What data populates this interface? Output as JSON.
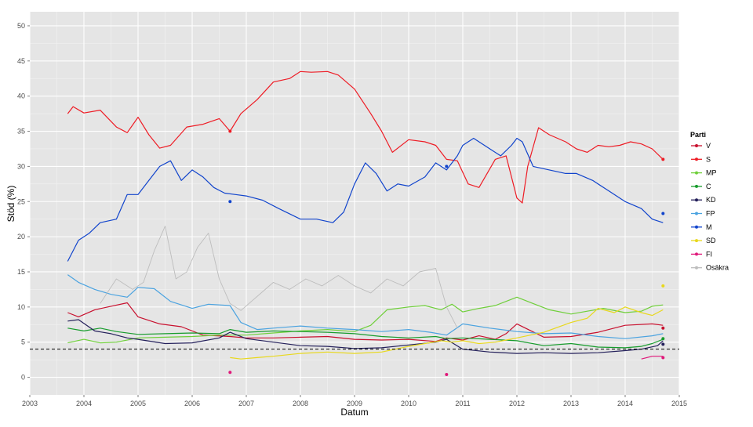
{
  "chart_data": {
    "type": "line",
    "xlabel": "Datum",
    "ylabel": "Stöd (%)",
    "xlim": [
      2003,
      2015
    ],
    "ylim": [
      -2.5,
      52
    ],
    "x_ticks": [
      2003,
      2004,
      2005,
      2006,
      2007,
      2008,
      2009,
      2010,
      2011,
      2012,
      2013,
      2014,
      2015
    ],
    "y_ticks": [
      0,
      5,
      10,
      15,
      20,
      25,
      30,
      35,
      40,
      45,
      50
    ],
    "grid": true,
    "reference_line": {
      "y": 4,
      "style": "dashed"
    },
    "legend": {
      "title": "Parti",
      "placement": "right"
    },
    "colors": {
      "panel": "#e5e5e5",
      "grid_major": "#ffffff",
      "reference": "#000000"
    },
    "series": [
      {
        "name": "V",
        "color": "#c8102e",
        "x": [
          2003.7,
          2003.9,
          2004.2,
          2004.5,
          2004.8,
          2005.0,
          2005.4,
          2005.8,
          2006.2,
          2006.7,
          2007.0,
          2007.5,
          2008.0,
          2008.5,
          2009.0,
          2009.5,
          2010.0,
          2010.5,
          2010.7,
          2011.0,
          2011.3,
          2011.6,
          2011.8,
          2012.0,
          2012.5,
          2013.0,
          2013.5,
          2014.0,
          2014.5,
          2014.7
        ],
        "y": [
          9.2,
          8.6,
          9.6,
          10.1,
          10.6,
          8.6,
          7.6,
          7.2,
          6.0,
          5.8,
          5.6,
          5.6,
          5.7,
          5.8,
          5.4,
          5.3,
          5.4,
          5.1,
          5.6,
          5.3,
          5.9,
          5.4,
          6.2,
          7.6,
          5.7,
          5.8,
          6.4,
          7.4,
          7.6,
          7.4
        ]
      },
      {
        "name": "S",
        "color": "#ee1c25",
        "x": [
          2003.7,
          2003.8,
          2004.0,
          2004.3,
          2004.6,
          2004.8,
          2005.0,
          2005.2,
          2005.4,
          2005.6,
          2005.9,
          2006.2,
          2006.5,
          2006.7,
          2006.9,
          2007.2,
          2007.5,
          2007.8,
          2008.0,
          2008.2,
          2008.5,
          2008.7,
          2009.0,
          2009.3,
          2009.5,
          2009.7,
          2010.0,
          2010.3,
          2010.5,
          2010.7,
          2010.9,
          2011.1,
          2011.3,
          2011.6,
          2011.8,
          2012.0,
          2012.1,
          2012.2,
          2012.4,
          2012.6,
          2012.9,
          2013.1,
          2013.3,
          2013.5,
          2013.7,
          2013.9,
          2014.1,
          2014.3,
          2014.5,
          2014.7
        ],
        "y": [
          37.5,
          38.5,
          37.6,
          38.0,
          35.6,
          34.8,
          37.0,
          34.5,
          32.6,
          33.0,
          35.6,
          36.0,
          36.8,
          35.0,
          37.5,
          39.5,
          42.0,
          42.5,
          43.5,
          43.4,
          43.5,
          43.0,
          41.0,
          37.5,
          35.0,
          32.0,
          33.8,
          33.5,
          33.0,
          31.0,
          30.8,
          27.5,
          27.0,
          31.0,
          31.5,
          25.5,
          24.8,
          30.0,
          35.5,
          34.5,
          33.5,
          32.5,
          32.0,
          33.0,
          32.8,
          33.0,
          33.5,
          33.2,
          32.5,
          31.0
        ]
      },
      {
        "name": "MP",
        "color": "#6fcf3a",
        "x": [
          2003.7,
          2004.0,
          2004.3,
          2004.6,
          2005.0,
          2005.5,
          2006.0,
          2006.5,
          2007.0,
          2007.5,
          2008.0,
          2008.5,
          2009.0,
          2009.3,
          2009.6,
          2010.0,
          2010.3,
          2010.6,
          2010.8,
          2011.0,
          2011.3,
          2011.6,
          2012.0,
          2012.3,
          2012.6,
          2013.0,
          2013.3,
          2013.6,
          2014.0,
          2014.3,
          2014.5,
          2014.7
        ],
        "y": [
          4.9,
          5.4,
          4.9,
          5.0,
          5.6,
          5.7,
          5.8,
          6.0,
          6.0,
          6.3,
          6.6,
          6.8,
          6.5,
          7.4,
          9.6,
          10.0,
          10.2,
          9.6,
          10.4,
          9.3,
          9.8,
          10.2,
          11.4,
          10.5,
          9.6,
          9.0,
          9.4,
          9.8,
          9.2,
          9.4,
          10.1,
          10.3
        ]
      },
      {
        "name": "C",
        "color": "#179c2c",
        "x": [
          2003.7,
          2004.0,
          2004.3,
          2004.6,
          2005.0,
          2005.5,
          2006.0,
          2006.5,
          2006.7,
          2007.0,
          2007.5,
          2008.0,
          2008.5,
          2009.0,
          2009.5,
          2010.0,
          2010.5,
          2010.7,
          2011.0,
          2011.5,
          2012.0,
          2012.5,
          2013.0,
          2013.5,
          2014.0,
          2014.3,
          2014.5,
          2014.7
        ],
        "y": [
          7.0,
          6.6,
          7.0,
          6.5,
          6.1,
          6.2,
          6.3,
          6.2,
          6.8,
          6.4,
          6.6,
          6.5,
          6.4,
          6.2,
          5.8,
          5.6,
          5.8,
          5.5,
          5.6,
          5.4,
          5.2,
          4.5,
          4.8,
          4.3,
          4.2,
          4.4,
          4.8,
          5.4
        ]
      },
      {
        "name": "KD",
        "color": "#231f5a",
        "x": [
          2003.7,
          2003.9,
          2004.2,
          2004.5,
          2004.8,
          2005.0,
          2005.5,
          2006.0,
          2006.5,
          2006.7,
          2007.0,
          2007.5,
          2008.0,
          2008.5,
          2009.0,
          2009.5,
          2010.0,
          2010.5,
          2010.7,
          2011.0,
          2011.5,
          2012.0,
          2012.5,
          2013.0,
          2013.5,
          2014.0,
          2014.3,
          2014.6,
          2014.7
        ],
        "y": [
          8.0,
          8.2,
          6.6,
          6.2,
          5.6,
          5.4,
          4.8,
          4.9,
          5.6,
          6.4,
          5.5,
          5.0,
          4.5,
          4.4,
          4.1,
          4.2,
          4.6,
          5.0,
          5.4,
          4.0,
          3.6,
          3.4,
          3.5,
          3.4,
          3.5,
          3.8,
          4.0,
          4.5,
          5.2
        ]
      },
      {
        "name": "FP",
        "color": "#4ba3e0",
        "x": [
          2003.7,
          2003.9,
          2004.2,
          2004.5,
          2004.8,
          2005.0,
          2005.3,
          2005.6,
          2006.0,
          2006.3,
          2006.7,
          2006.9,
          2007.2,
          2007.5,
          2008.0,
          2008.5,
          2009.0,
          2009.5,
          2010.0,
          2010.4,
          2010.7,
          2011.0,
          2011.5,
          2012.0,
          2012.5,
          2013.0,
          2013.5,
          2014.0,
          2014.5,
          2014.7
        ],
        "y": [
          14.6,
          13.5,
          12.5,
          11.8,
          11.4,
          12.8,
          12.6,
          10.8,
          9.8,
          10.4,
          10.2,
          7.8,
          6.8,
          7.0,
          7.3,
          7.0,
          6.8,
          6.5,
          6.8,
          6.4,
          6.0,
          7.6,
          7.0,
          6.5,
          6.2,
          6.3,
          5.8,
          5.5,
          5.9,
          6.2
        ]
      },
      {
        "name": "M",
        "color": "#1144cc",
        "x": [
          2003.7,
          2003.9,
          2004.1,
          2004.3,
          2004.6,
          2004.8,
          2005.0,
          2005.2,
          2005.4,
          2005.6,
          2005.8,
          2006.0,
          2006.2,
          2006.4,
          2006.6,
          2006.8,
          2007.0,
          2007.3,
          2007.6,
          2008.0,
          2008.3,
          2008.6,
          2008.8,
          2009.0,
          2009.2,
          2009.4,
          2009.6,
          2009.8,
          2010.0,
          2010.3,
          2010.5,
          2010.7,
          2010.9,
          2011.0,
          2011.2,
          2011.5,
          2011.7,
          2011.9,
          2012.0,
          2012.1,
          2012.3,
          2012.6,
          2012.9,
          2013.1,
          2013.4,
          2013.7,
          2014.0,
          2014.3,
          2014.5,
          2014.7
        ],
        "y": [
          16.5,
          19.5,
          20.5,
          22.0,
          22.5,
          26.0,
          26.0,
          28.0,
          30.0,
          30.8,
          28.0,
          29.5,
          28.5,
          27.0,
          26.2,
          26.0,
          25.8,
          25.2,
          24.0,
          22.5,
          22.5,
          22.0,
          23.5,
          27.5,
          30.5,
          29.0,
          26.5,
          27.5,
          27.2,
          28.5,
          30.5,
          29.5,
          31.5,
          33.0,
          34.0,
          32.5,
          31.5,
          33.0,
          34.0,
          33.5,
          30.0,
          29.5,
          29.0,
          29.0,
          28.0,
          26.5,
          25.0,
          24.0,
          22.5,
          22.0
        ]
      },
      {
        "name": "SD",
        "color": "#e8d81c",
        "x": [
          2006.7,
          2006.9,
          2007.2,
          2007.5,
          2008.0,
          2008.5,
          2009.0,
          2009.5,
          2010.0,
          2010.3,
          2010.6,
          2010.8,
          2011.0,
          2011.3,
          2011.6,
          2012.0,
          2012.5,
          2013.0,
          2013.3,
          2013.5,
          2013.8,
          2014.0,
          2014.3,
          2014.5,
          2014.7
        ],
        "y": [
          2.8,
          2.6,
          2.8,
          3.0,
          3.4,
          3.6,
          3.4,
          3.6,
          4.4,
          4.8,
          5.2,
          5.0,
          5.2,
          4.8,
          5.0,
          5.6,
          6.4,
          7.8,
          8.4,
          9.8,
          9.2,
          10.0,
          9.2,
          8.8,
          9.6
        ]
      },
      {
        "name": "FI",
        "color": "#e0187a",
        "x": [
          2014.3,
          2014.5,
          2014.7
        ],
        "y": [
          2.6,
          3.0,
          3.0
        ]
      },
      {
        "name": "Osäkra",
        "color": "#bdbdbd",
        "x": [
          2004.3,
          2004.6,
          2004.9,
          2005.1,
          2005.3,
          2005.5,
          2005.7,
          2005.9,
          2006.1,
          2006.3,
          2006.5,
          2006.7,
          2006.9,
          2007.2,
          2007.5,
          2007.8,
          2008.1,
          2008.4,
          2008.7,
          2009.0,
          2009.3,
          2009.6,
          2009.9,
          2010.2,
          2010.5,
          2010.7,
          2010.9
        ],
        "y": [
          10.5,
          14.0,
          12.5,
          13.5,
          18.0,
          21.5,
          14.0,
          15.0,
          18.5,
          20.5,
          14.0,
          10.5,
          9.5,
          11.5,
          13.5,
          12.5,
          14.0,
          13.0,
          14.5,
          13.0,
          12.0,
          14.0,
          13.0,
          15.0,
          15.5,
          10.0,
          7.0
        ]
      }
    ],
    "scatter_points": [
      {
        "series": "S",
        "x": 2006.7,
        "y": 35.0
      },
      {
        "series": "S",
        "x": 2014.7,
        "y": 31.0
      },
      {
        "series": "M",
        "x": 2006.7,
        "y": 25.0
      },
      {
        "series": "M",
        "x": 2010.7,
        "y": 30.0
      },
      {
        "series": "M",
        "x": 2014.7,
        "y": 23.3
      },
      {
        "series": "V",
        "x": 2014.7,
        "y": 7.0
      },
      {
        "series": "C",
        "x": 2014.7,
        "y": 5.5
      },
      {
        "series": "KD",
        "x": 2014.7,
        "y": 4.7
      },
      {
        "series": "SD",
        "x": 2014.7,
        "y": 13.0
      },
      {
        "series": "FI",
        "x": 2006.7,
        "y": 0.7
      },
      {
        "series": "FI",
        "x": 2010.7,
        "y": 0.4
      },
      {
        "series": "FI",
        "x": 2014.7,
        "y": 2.8
      }
    ]
  }
}
